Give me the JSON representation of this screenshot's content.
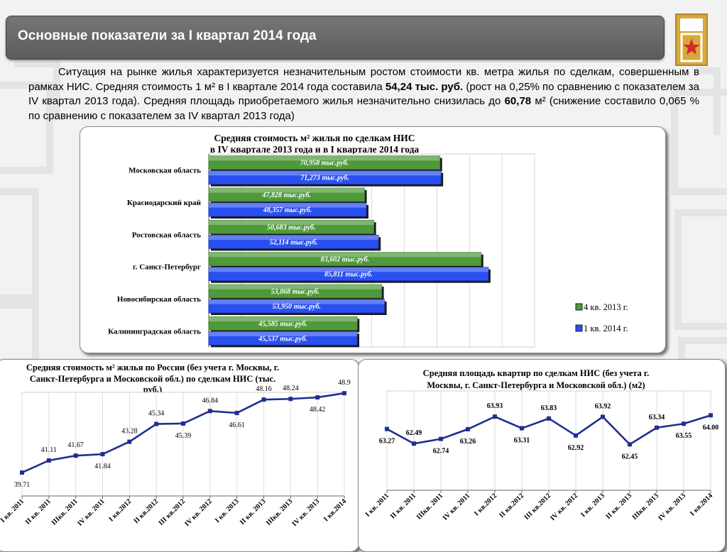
{
  "slide": {
    "title": "Основные показатели за I квартал 2014 года",
    "intro": {
      "part1": "Ситуация на рынке жилья характеризуется незначительным ростом стоимости кв. метра жилья по сделкам, совершенным в рамках НИС. Средняя стоимость 1 м² в I квартале 2014 года составила ",
      "price_value": "54,24 тыс. руб.",
      "part2": " (рост на 0,25% по сравнению с показателем за IV квартал 2013 года). Средняя площадь приобретаемого жилья незначительно снизилась до ",
      "area_value": "60,78",
      "part3": " м² (снижение составило 0,065 % по сравнению с показателем за IV квартал 2013 года)"
    }
  },
  "chart_data": [
    {
      "type": "bar",
      "orientation": "horizontal",
      "title_line1": "Средняя стоимость м² жилья по сделкам НИС",
      "title_line2": "в IV квартале 2013 года и в I квартале  2014 года",
      "categories": [
        "Московская область",
        "Краснодарский край",
        "Ростовская область",
        "г. Санкт-Петербург",
        "Новосибирская область",
        "Калининградская область"
      ],
      "series": [
        {
          "name": "4 кв. 2013 г.",
          "color": "#4e9a3a",
          "values": [
            70.958,
            47.828,
            50.683,
            83.602,
            53.068,
            45.585
          ],
          "labels": [
            "70,958 тыс.руб.",
            "47,828 тыс.руб.",
            "50,683  тыс.руб.",
            "83,602 тыс.руб.",
            "53,068  тыс.руб.",
            "45,585  тыс.руб."
          ]
        },
        {
          "name": "1 кв. 2014 г.",
          "color": "#2a4ff0",
          "values": [
            71.273,
            48.357,
            52.114,
            85.811,
            53.95,
            45.537
          ],
          "labels": [
            "71,273 тыс.руб.",
            "48,357 тыс.руб.",
            "52,114 тыс.руб.",
            "85,811 тыс.руб.",
            "53,950 тыс.руб.",
            "45,537 тыс.руб."
          ]
        }
      ],
      "xlim": [
        0,
        100
      ],
      "grid": true,
      "legend": "right"
    },
    {
      "type": "line",
      "title_line1": "Средняя стоимость м² жилья по России (без учета г. Москвы, г.",
      "title_line2": "Санкт-Петербурга и Московской обл.) по сделкам НИС (тыс.",
      "title_line3": "руб.)",
      "categories": [
        "I кв. 2011",
        "II кв. 2011",
        "IIIкв. 2011",
        "IV кв. 2011",
        "I кв.2012",
        "II кв.2012",
        "III кв.2012",
        "IV кв. 2012",
        "I кв. 2013",
        "II кв. 2013",
        "IIIкв. 2013",
        "IV кв. 2013",
        "I кв.2014"
      ],
      "values": [
        39.71,
        41.11,
        41.67,
        41.84,
        43.28,
        45.34,
        45.39,
        46.84,
        46.61,
        48.16,
        48.24,
        48.42,
        48.9
      ],
      "labels": [
        "39.71",
        "41.11",
        "41.67",
        "41.84",
        "43.28",
        "45.34",
        "45.39",
        "46.84",
        "46.61",
        "48.16",
        "48.24",
        "48.42",
        "48.9"
      ],
      "ylim": [
        37,
        49
      ],
      "color": "#1f2f8f",
      "grid": true
    },
    {
      "type": "line",
      "title_line1": "Средняя площадь квартир по сделкам НИС (без учета г.",
      "title_line2": "Москвы, г. Санкт-Петербурга и Московской обл.) (м2)",
      "categories": [
        "I кв. 2011",
        "II кв. 2011",
        "IIIкв. 2011",
        "IV кв. 2011",
        "I кв.2012",
        "II кв.2012",
        "III кв.2012",
        "IV кв. 2012",
        "I кв. 2013",
        "II кв. 2013",
        "IIIкв. 2013",
        "IV кв. 2013",
        "I кв.2014"
      ],
      "values": [
        63.27,
        62.49,
        62.74,
        63.26,
        63.93,
        63.31,
        63.83,
        62.92,
        63.92,
        62.45,
        63.34,
        63.55,
        64.0
      ],
      "labels": [
        "63.27",
        "62.49",
        "62.74",
        "63.26",
        "63.93",
        "63.31",
        "63.83",
        "62.92",
        "63.92",
        "62.45",
        "63.34",
        "63.55",
        "64.00"
      ],
      "ylim": [
        60,
        65.3
      ],
      "color": "#1f2f8f",
      "grid": true
    }
  ]
}
